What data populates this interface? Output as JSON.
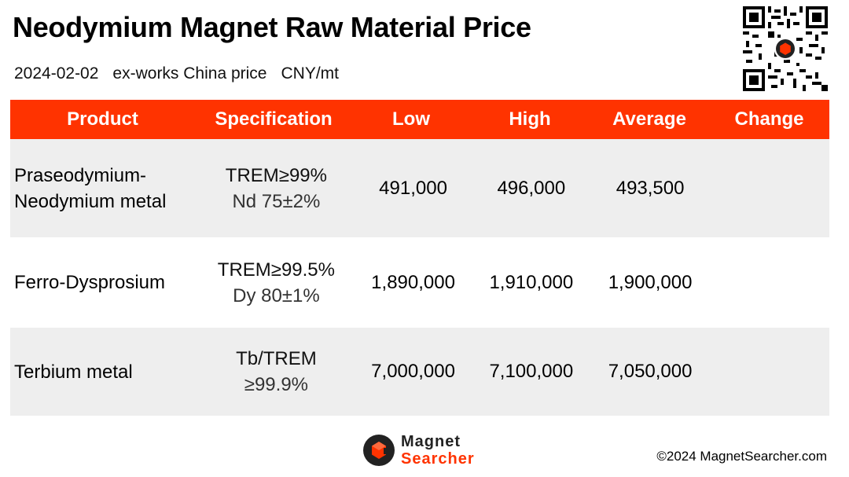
{
  "header": {
    "title": "Neodymium Magnet Raw Material Price",
    "date": "2024-02-02",
    "basis": "ex-works China price",
    "unit": "CNY/mt"
  },
  "table": {
    "columns": [
      "Product",
      "Specification",
      "Low",
      "High",
      "Average",
      "Change"
    ],
    "rows": [
      {
        "product_line1": "Praseodymium-",
        "product_line2": "Neodymium metal",
        "spec_line1": "TREM≥99%",
        "spec_line2": "Nd 75±2%",
        "low": "491,000",
        "high": "496,000",
        "average": "493,500",
        "change": ""
      },
      {
        "product_line1": "Ferro-Dysprosium",
        "product_line2": "",
        "spec_line1": "TREM≥99.5%",
        "spec_line2": "Dy 80±1%",
        "low": "1,890,000",
        "high": "1,910,000",
        "average": "1,900,000",
        "change": ""
      },
      {
        "product_line1": "Terbium metal",
        "product_line2": "",
        "spec_line1": "Tb/TREM",
        "spec_line2": "≥99.9%",
        "low": "7,000,000",
        "high": "7,100,000",
        "average": "7,050,000",
        "change": ""
      }
    ]
  },
  "footer": {
    "logo_line1": "Magnet",
    "logo_line2": "Searcher",
    "copyright": "©2024 MagnetSearcher.com"
  },
  "colors": {
    "accent": "#ff3300",
    "row_shade": "#eeeeee"
  },
  "icons": {
    "qr": "qr-code-icon",
    "logo": "magnet-searcher-logo-icon"
  }
}
